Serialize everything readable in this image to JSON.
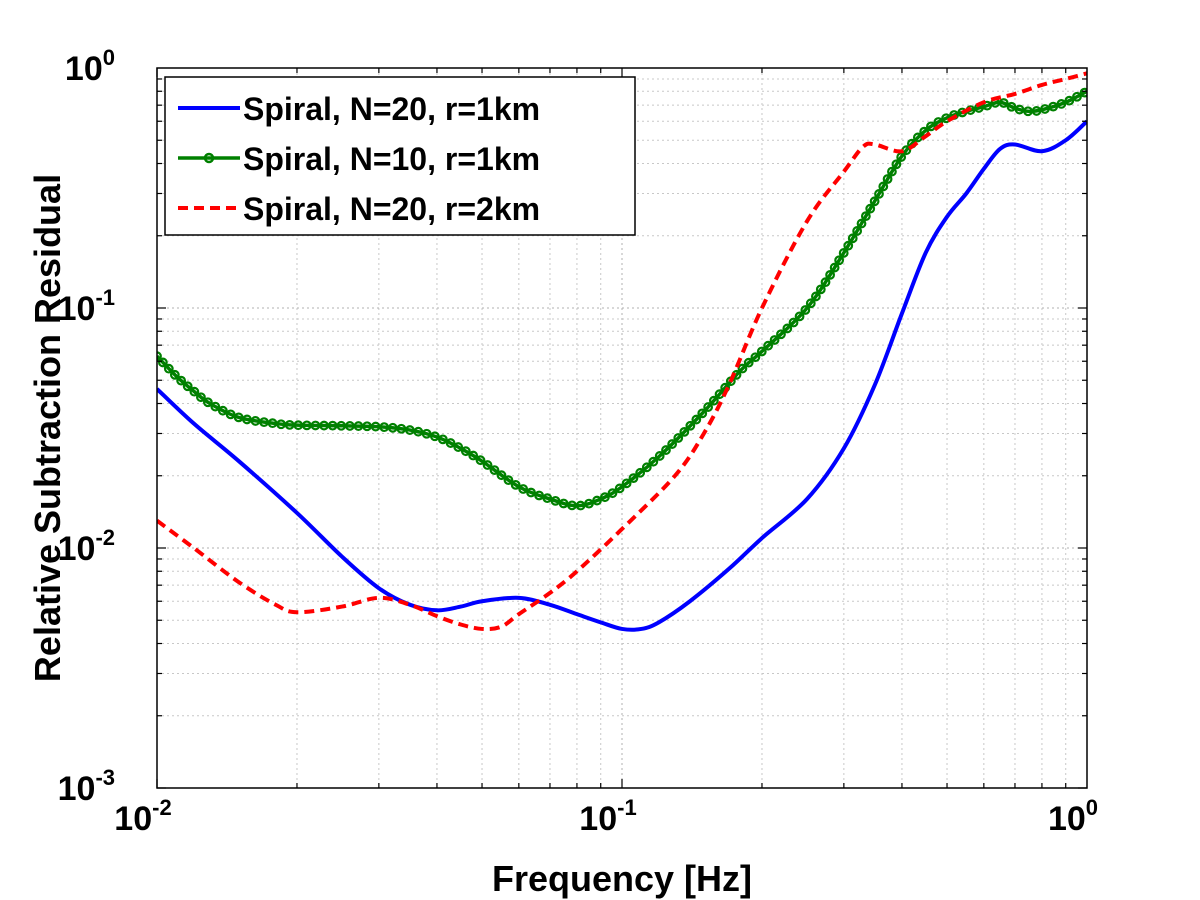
{
  "chart_data": {
    "type": "line",
    "xscale": "log",
    "yscale": "log",
    "xlim": [
      0.01,
      1
    ],
    "ylim": [
      0.001,
      1
    ],
    "xlabel": "Frequency [Hz]",
    "ylabel": "Relative Subtraction Residual",
    "grid": true,
    "legend_position": "top-left",
    "x_ticks": [
      {
        "base": "10",
        "exp": "-2",
        "value": 0.01
      },
      {
        "base": "10",
        "exp": "-1",
        "value": 0.1
      },
      {
        "base": "10",
        "exp": "0",
        "value": 1
      }
    ],
    "y_ticks": [
      {
        "base": "10",
        "exp": "-3",
        "value": 0.001
      },
      {
        "base": "10",
        "exp": "-2",
        "value": 0.01
      },
      {
        "base": "10",
        "exp": "-1",
        "value": 0.1
      },
      {
        "base": "10",
        "exp": "0",
        "value": 1
      }
    ],
    "series": [
      {
        "name": "Spiral, N=20, r=1km",
        "color": "#0000ff",
        "style": "solid",
        "marker": "none",
        "points": [
          [
            0.01,
            0.046
          ],
          [
            0.012,
            0.033
          ],
          [
            0.015,
            0.023
          ],
          [
            0.02,
            0.014
          ],
          [
            0.025,
            0.0092
          ],
          [
            0.03,
            0.0068
          ],
          [
            0.035,
            0.0058
          ],
          [
            0.04,
            0.0055
          ],
          [
            0.045,
            0.0057
          ],
          [
            0.05,
            0.006
          ],
          [
            0.06,
            0.0062
          ],
          [
            0.07,
            0.0058
          ],
          [
            0.08,
            0.0053
          ],
          [
            0.09,
            0.0049
          ],
          [
            0.1,
            0.0046
          ],
          [
            0.11,
            0.0046
          ],
          [
            0.12,
            0.0049
          ],
          [
            0.14,
            0.006
          ],
          [
            0.17,
            0.0082
          ],
          [
            0.2,
            0.011
          ],
          [
            0.25,
            0.016
          ],
          [
            0.3,
            0.026
          ],
          [
            0.35,
            0.048
          ],
          [
            0.4,
            0.095
          ],
          [
            0.45,
            0.17
          ],
          [
            0.5,
            0.24
          ],
          [
            0.55,
            0.3
          ],
          [
            0.6,
            0.38
          ],
          [
            0.65,
            0.46
          ],
          [
            0.7,
            0.48
          ],
          [
            0.8,
            0.45
          ],
          [
            0.9,
            0.5
          ],
          [
            1.0,
            0.6
          ]
        ]
      },
      {
        "name": "Spiral, N=10, r=1km",
        "color": "#008000",
        "style": "solid",
        "marker": "circle",
        "points": [
          [
            0.01,
            0.063
          ],
          [
            0.011,
            0.052
          ],
          [
            0.012,
            0.045
          ],
          [
            0.013,
            0.04
          ],
          [
            0.015,
            0.035
          ],
          [
            0.018,
            0.033
          ],
          [
            0.02,
            0.0325
          ],
          [
            0.025,
            0.0323
          ],
          [
            0.03,
            0.032
          ],
          [
            0.035,
            0.031
          ],
          [
            0.04,
            0.029
          ],
          [
            0.045,
            0.026
          ],
          [
            0.05,
            0.023
          ],
          [
            0.06,
            0.018
          ],
          [
            0.07,
            0.016
          ],
          [
            0.08,
            0.015
          ],
          [
            0.09,
            0.016
          ],
          [
            0.1,
            0.018
          ],
          [
            0.12,
            0.024
          ],
          [
            0.15,
            0.037
          ],
          [
            0.18,
            0.055
          ],
          [
            0.2,
            0.066
          ],
          [
            0.25,
            0.1
          ],
          [
            0.3,
            0.17
          ],
          [
            0.35,
            0.28
          ],
          [
            0.4,
            0.43
          ],
          [
            0.45,
            0.55
          ],
          [
            0.5,
            0.62
          ],
          [
            0.55,
            0.66
          ],
          [
            0.6,
            0.69
          ],
          [
            0.65,
            0.72
          ],
          [
            0.7,
            0.68
          ],
          [
            0.75,
            0.66
          ],
          [
            0.8,
            0.67
          ],
          [
            0.9,
            0.72
          ],
          [
            1.0,
            0.8
          ]
        ]
      },
      {
        "name": "Spiral, N=20, r=2km",
        "color": "#ff0000",
        "style": "dashed",
        "marker": "none",
        "points": [
          [
            0.01,
            0.013
          ],
          [
            0.012,
            0.01
          ],
          [
            0.015,
            0.0072
          ],
          [
            0.018,
            0.0058
          ],
          [
            0.02,
            0.0054
          ],
          [
            0.025,
            0.0057
          ],
          [
            0.03,
            0.0062
          ],
          [
            0.035,
            0.0058
          ],
          [
            0.04,
            0.0052
          ],
          [
            0.045,
            0.0048
          ],
          [
            0.05,
            0.0046
          ],
          [
            0.055,
            0.0047
          ],
          [
            0.06,
            0.0053
          ],
          [
            0.07,
            0.0065
          ],
          [
            0.08,
            0.008
          ],
          [
            0.1,
            0.012
          ],
          [
            0.13,
            0.02
          ],
          [
            0.15,
            0.03
          ],
          [
            0.17,
            0.048
          ],
          [
            0.2,
            0.1
          ],
          [
            0.25,
            0.23
          ],
          [
            0.3,
            0.37
          ],
          [
            0.33,
            0.47
          ],
          [
            0.35,
            0.48
          ],
          [
            0.4,
            0.45
          ],
          [
            0.45,
            0.52
          ],
          [
            0.5,
            0.6
          ],
          [
            0.6,
            0.72
          ],
          [
            0.7,
            0.78
          ],
          [
            0.8,
            0.85
          ],
          [
            0.9,
            0.9
          ],
          [
            1.0,
            0.95
          ]
        ]
      }
    ]
  }
}
